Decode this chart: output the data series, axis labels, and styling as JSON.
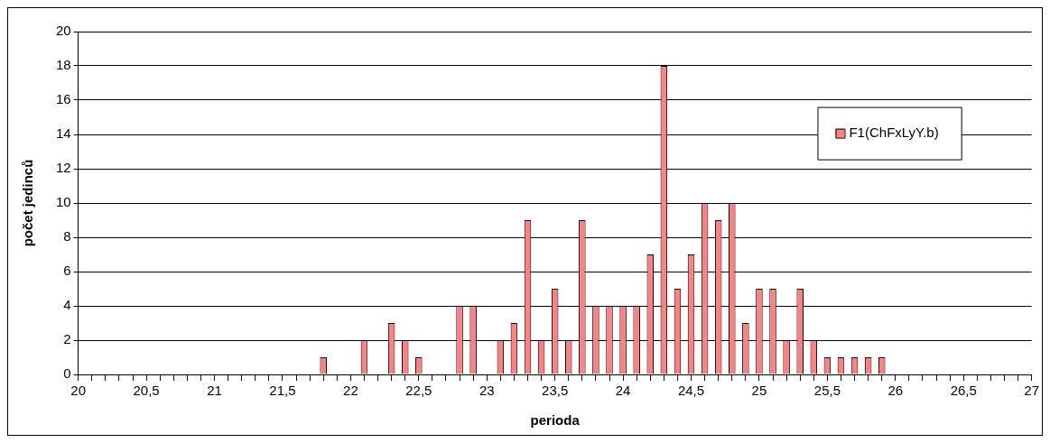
{
  "chart_data": {
    "type": "bar",
    "xlabel": "perioda",
    "ylabel": "počet jedinců",
    "x": [
      21.8,
      22.1,
      22.3,
      22.4,
      22.5,
      22.8,
      22.9,
      23.1,
      23.2,
      23.3,
      23.4,
      23.5,
      23.6,
      23.7,
      23.8,
      23.9,
      24.0,
      24.1,
      24.2,
      24.3,
      24.4,
      24.5,
      24.6,
      24.7,
      24.8,
      24.9,
      25.0,
      25.1,
      25.2,
      25.3,
      25.4,
      25.5,
      25.6,
      25.7,
      25.8,
      25.9
    ],
    "series": [
      {
        "name": "F1(ChFxLyY.b)",
        "color": "#ff8080",
        "values": [
          1,
          2,
          3,
          2,
          1,
          4,
          4,
          2,
          3,
          9,
          2,
          5,
          2,
          9,
          4,
          4,
          4,
          4,
          7,
          18,
          5,
          7,
          10,
          9,
          10,
          3,
          5,
          5,
          2,
          5,
          2,
          1,
          1,
          1,
          1,
          1
        ]
      }
    ],
    "xlim": [
      20,
      27
    ],
    "xticks": [
      20,
      {
        "value": 20.1,
        "label": null
      },
      {
        "value": 20.2,
        "label": null
      },
      {
        "value": 20.3,
        "label": null
      },
      {
        "value": 20.4,
        "label": null
      },
      {
        "value": 20.5,
        "label": "20,5"
      },
      {
        "value": 20.6,
        "label": null
      },
      {
        "value": 20.7,
        "label": null
      },
      {
        "value": 20.8,
        "label": null
      },
      {
        "value": 20.9,
        "label": null
      },
      21,
      {
        "value": 21.1,
        "label": null
      },
      {
        "value": 21.2,
        "label": null
      },
      {
        "value": 21.3,
        "label": null
      },
      {
        "value": 21.4,
        "label": null
      },
      {
        "value": 21.5,
        "label": "21,5"
      },
      {
        "value": 21.6,
        "label": null
      },
      {
        "value": 21.7,
        "label": null
      },
      {
        "value": 21.8,
        "label": null
      },
      {
        "value": 21.9,
        "label": null
      },
      22,
      {
        "value": 22.1,
        "label": null
      },
      {
        "value": 22.2,
        "label": null
      },
      {
        "value": 22.3,
        "label": null
      },
      {
        "value": 22.4,
        "label": null
      },
      {
        "value": 22.5,
        "label": "22,5"
      },
      {
        "value": 22.6,
        "label": null
      },
      {
        "value": 22.7,
        "label": null
      },
      {
        "value": 22.8,
        "label": null
      },
      {
        "value": 22.9,
        "label": null
      },
      23,
      {
        "value": 23.1,
        "label": null
      },
      {
        "value": 23.2,
        "label": null
      },
      {
        "value": 23.3,
        "label": null
      },
      {
        "value": 23.4,
        "label": null
      },
      {
        "value": 23.5,
        "label": "23,5"
      },
      {
        "value": 23.6,
        "label": null
      },
      {
        "value": 23.7,
        "label": null
      },
      {
        "value": 23.8,
        "label": null
      },
      {
        "value": 23.9,
        "label": null
      },
      24,
      {
        "value": 24.1,
        "label": null
      },
      {
        "value": 24.2,
        "label": null
      },
      {
        "value": 24.3,
        "label": null
      },
      {
        "value": 24.4,
        "label": null
      },
      {
        "value": 24.5,
        "label": "24,5"
      },
      {
        "value": 24.6,
        "label": null
      },
      {
        "value": 24.7,
        "label": null
      },
      {
        "value": 24.8,
        "label": null
      },
      {
        "value": 24.9,
        "label": null
      },
      25,
      {
        "value": 25.1,
        "label": null
      },
      {
        "value": 25.2,
        "label": null
      },
      {
        "value": 25.3,
        "label": null
      },
      {
        "value": 25.4,
        "label": null
      },
      {
        "value": 25.5,
        "label": "25,5"
      },
      {
        "value": 25.6,
        "label": null
      },
      {
        "value": 25.7,
        "label": null
      },
      {
        "value": 25.8,
        "label": null
      },
      {
        "value": 25.9,
        "label": null
      },
      26,
      {
        "value": 26.1,
        "label": null
      },
      {
        "value": 26.2,
        "label": null
      },
      {
        "value": 26.3,
        "label": null
      },
      {
        "value": 26.4,
        "label": null
      },
      {
        "value": 26.5,
        "label": "26,5"
      },
      {
        "value": 26.6,
        "label": null
      },
      {
        "value": 26.7,
        "label": null
      },
      {
        "value": 26.8,
        "label": null
      },
      {
        "value": 26.9,
        "label": null
      },
      27
    ],
    "ylim": [
      0,
      20
    ],
    "yticks": [
      0,
      2,
      4,
      6,
      8,
      10,
      12,
      14,
      16,
      18,
      20
    ],
    "grid": "y",
    "legend": "right"
  }
}
